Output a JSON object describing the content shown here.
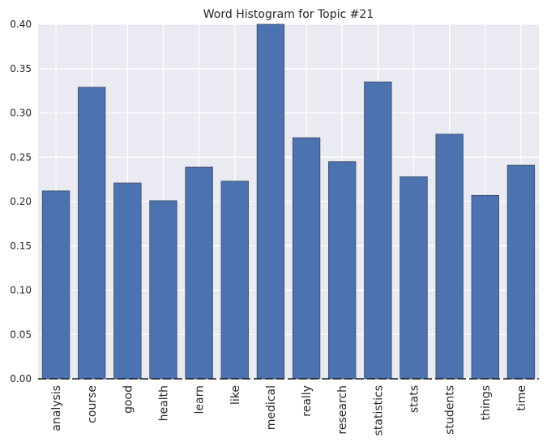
{
  "chart_data": {
    "type": "bar",
    "title": "Word Histogram for Topic #21",
    "xlabel": "",
    "ylabel": "",
    "categories": [
      "analysis",
      "course",
      "good",
      "health",
      "learn",
      "like",
      "medical",
      "really",
      "research",
      "statistics",
      "stats",
      "students",
      "things",
      "time"
    ],
    "values": [
      0.212,
      0.329,
      0.221,
      0.201,
      0.239,
      0.223,
      0.4,
      0.272,
      0.245,
      0.335,
      0.228,
      0.276,
      0.207,
      0.241
    ],
    "ylim": [
      0,
      0.4
    ],
    "yticks": [
      "0.00",
      "0.05",
      "0.10",
      "0.15",
      "0.20",
      "0.25",
      "0.30",
      "0.35",
      "0.40"
    ],
    "grid": true,
    "colors": {
      "bar": "#4c72b0",
      "bar_edge": "#3b4a66",
      "plot_background": "#eaeaf2",
      "grid": "#ffffff",
      "baseline_dash": "#1a1a1a"
    }
  }
}
